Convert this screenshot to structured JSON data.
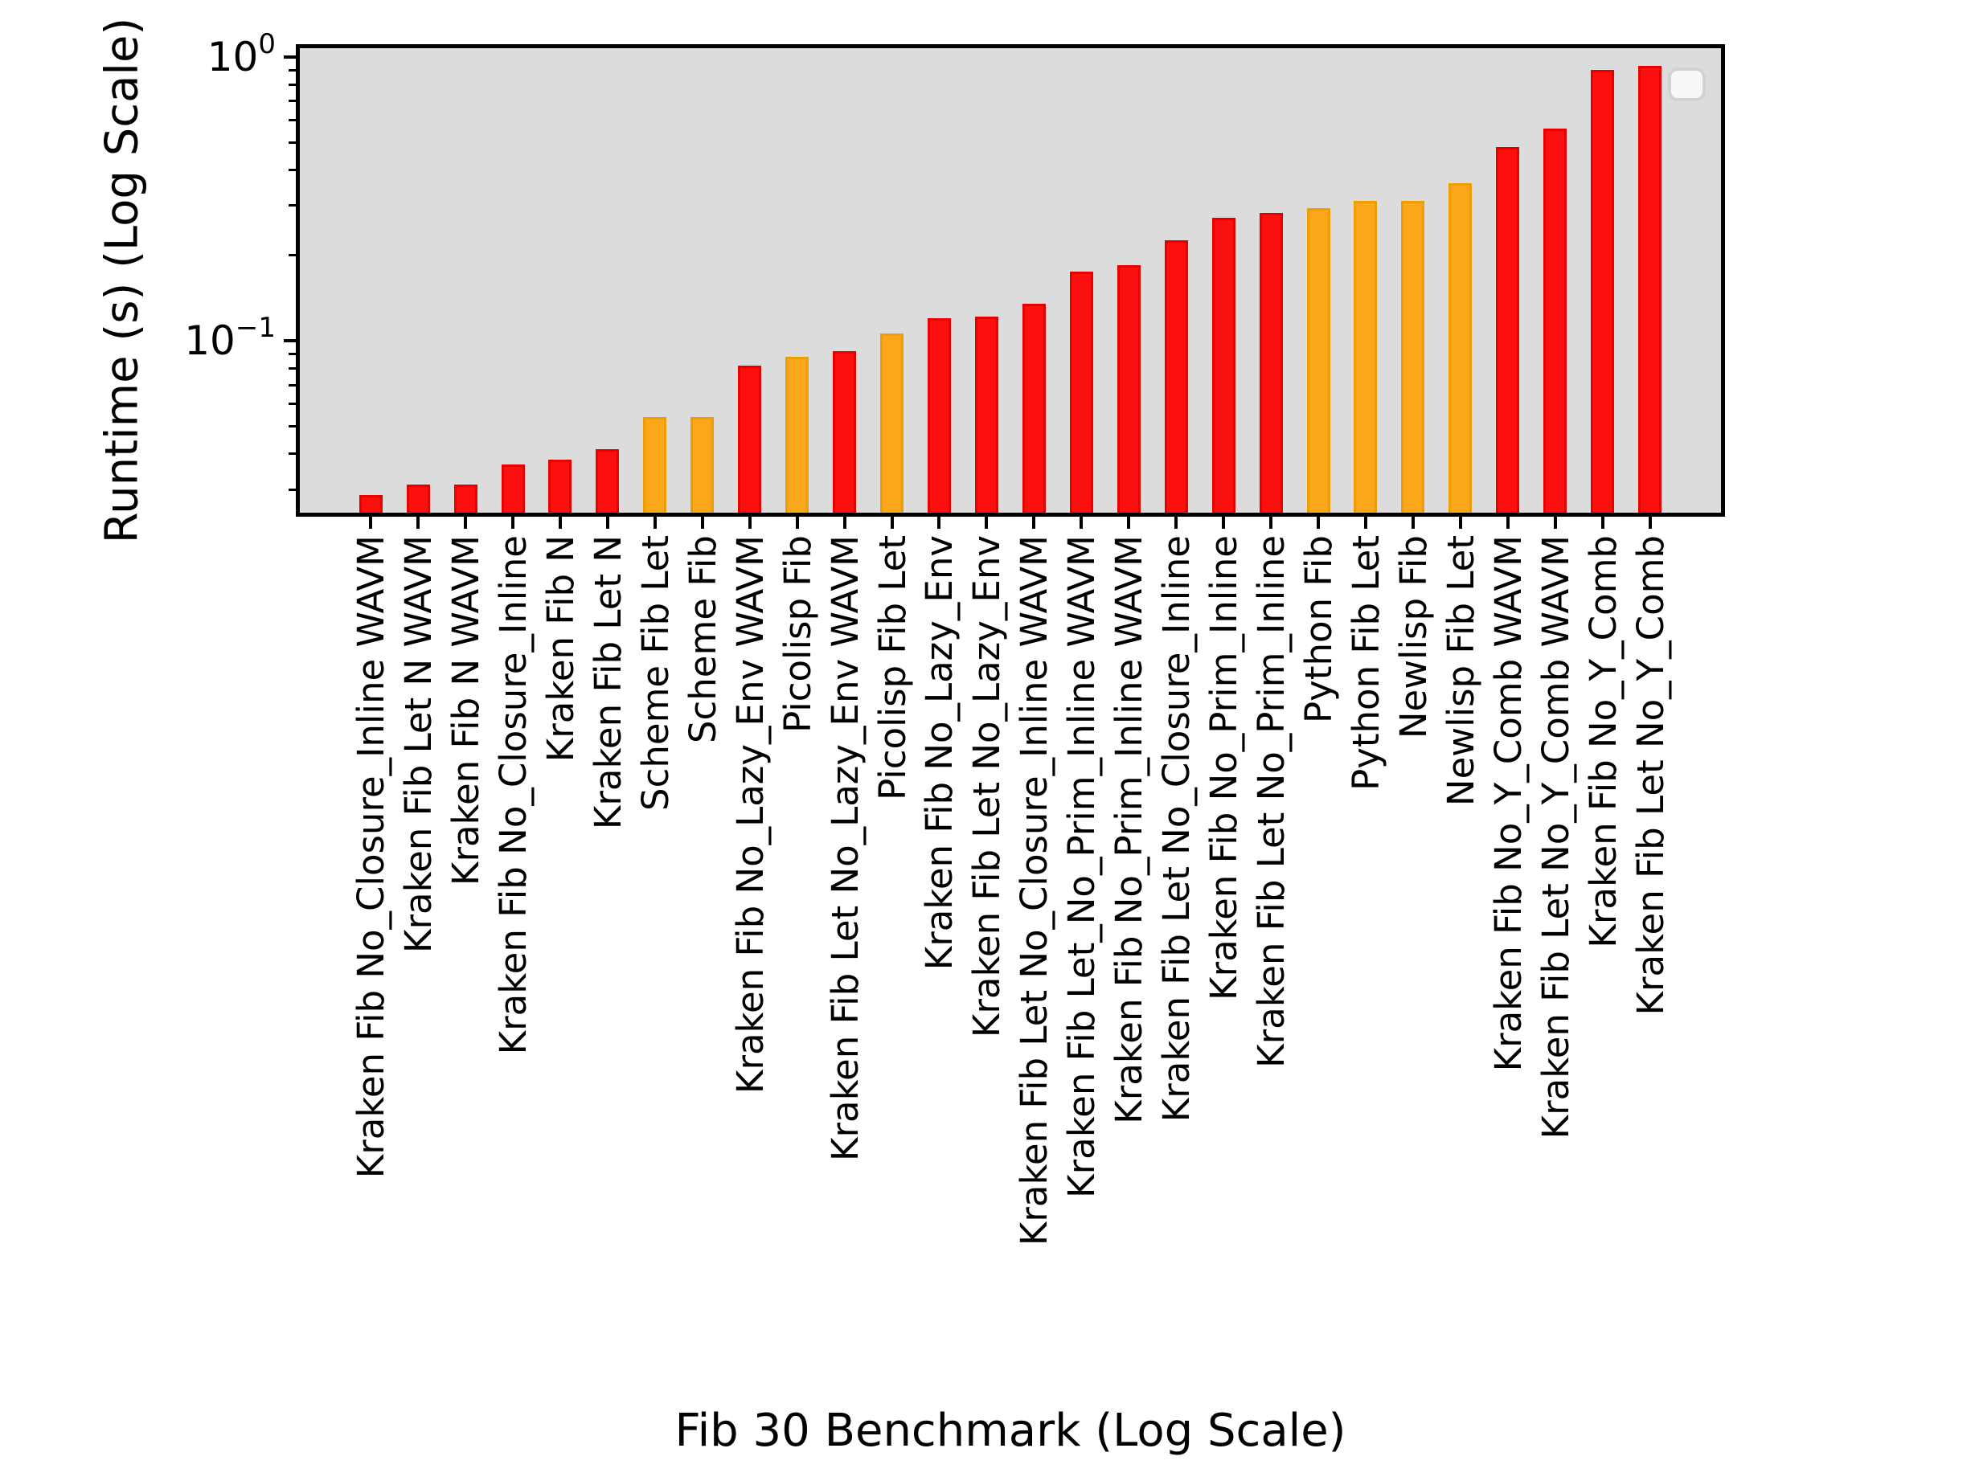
{
  "figure": {
    "background": "#ffffff",
    "plot_background": "#dcdcdc",
    "spine_color": "#000000"
  },
  "palette": {
    "red_face": "#fb0f0f",
    "red_edge": "#e60000",
    "orange_face": "#faa71a",
    "orange_edge": "#ef9c05"
  },
  "axes": {
    "y_ticks": [
      {
        "base": "10",
        "exp": "0",
        "value": 1
      },
      {
        "base": "10",
        "exp": "−1",
        "value": 0.1
      }
    ]
  },
  "legend": {
    "visible": true,
    "entries": []
  },
  "chart_data": {
    "type": "bar",
    "title": "",
    "xlabel": "Fib 30 Benchmark (Log Scale)",
    "ylabel": "Runtime (s) (Log Scale)",
    "yscale": "log",
    "ylim": [
      0.024,
      1.12
    ],
    "grid": false,
    "legend_position": "upper right (empty frame)",
    "categories": [
      "Kraken Fib No_Closure_Inline WAVM",
      "Kraken Fib Let N WAVM",
      "Kraken Fib N WAVM",
      "Kraken Fib No_Closure_Inline",
      "Kraken Fib N",
      "Kraken Fib Let N",
      "Scheme Fib Let",
      "Scheme Fib",
      "Kraken Fib No_Lazy_Env WAVM",
      "Picolisp Fib",
      "Kraken Fib Let No_Lazy_Env WAVM",
      "Picolisp Fib Let",
      "Kraken Fib No_Lazy_Env",
      "Kraken Fib Let No_Lazy_Env",
      "Kraken Fib Let No_Closure_Inline WAVM",
      "Kraken Fib Let_No_Prim_Inline WAVM",
      "Kraken Fib No_Prim_Inline WAVM",
      "Kraken Fib Let No_Closure_Inline",
      "Kraken Fib No_Prim_Inline",
      "Kraken Fib Let No_Prim_Inline",
      "Python Fib",
      "Python Fib Let",
      "Newlisp Fib",
      "Newlisp Fib Let",
      "Kraken Fib No_Y_Comb WAVM",
      "Kraken Fib Let No_Y_Comb WAVM",
      "Kraken Fib No_Y_Comb",
      "Kraken Fib Let No_Y_Comb"
    ],
    "values": [
      0.0287,
      0.0312,
      0.0313,
      0.0367,
      0.0383,
      0.0416,
      0.0539,
      0.054,
      0.0819,
      0.0881,
      0.0922,
      0.106,
      0.12,
      0.122,
      0.135,
      0.176,
      0.185,
      0.227,
      0.271,
      0.282,
      0.293,
      0.311,
      0.312,
      0.359,
      0.481,
      0.56,
      0.899,
      0.931
    ],
    "bar_colors": [
      "red",
      "red",
      "red",
      "red",
      "red",
      "red",
      "orange",
      "orange",
      "red",
      "orange",
      "red",
      "orange",
      "red",
      "red",
      "red",
      "red",
      "red",
      "red",
      "red",
      "red",
      "orange",
      "orange",
      "orange",
      "orange",
      "red",
      "red",
      "red",
      "red"
    ]
  }
}
